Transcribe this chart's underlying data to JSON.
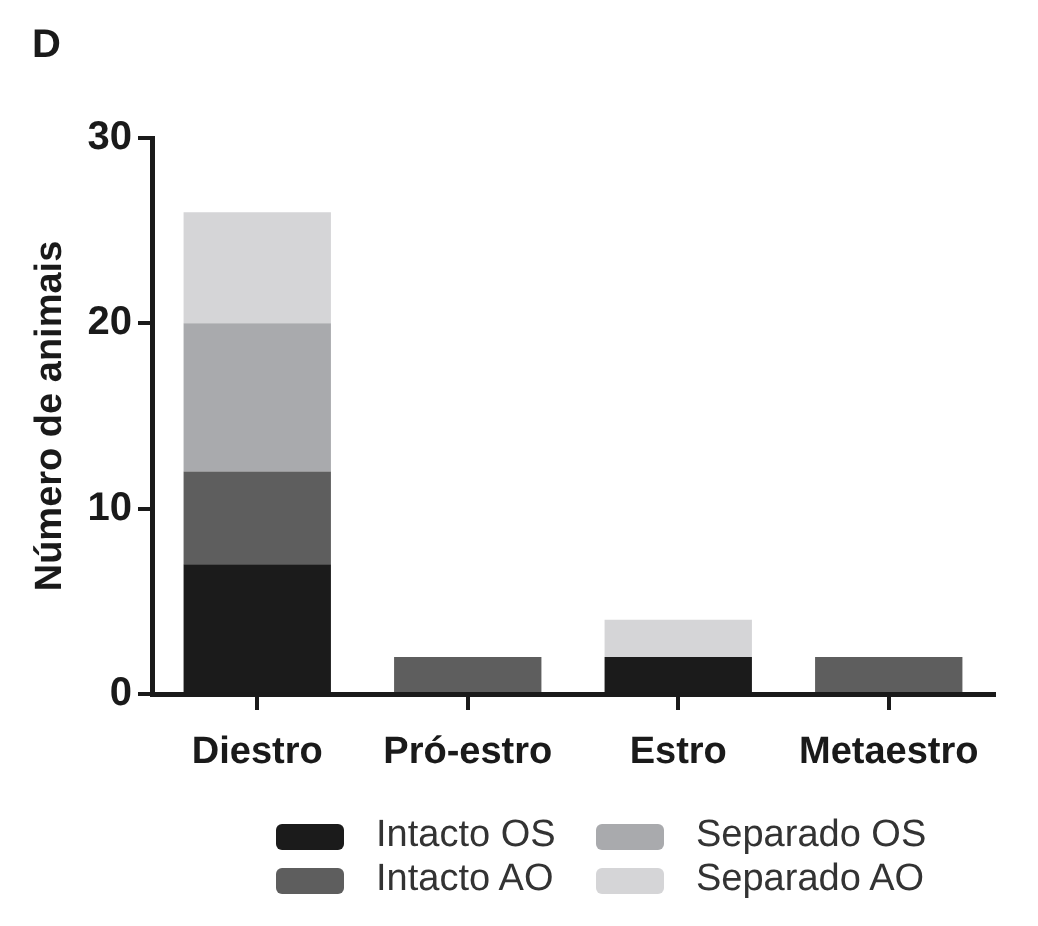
{
  "chart_data": {
    "type": "bar",
    "title": "D",
    "ylabel": "Número de animais",
    "categories": [
      "Diestro",
      "Pró-estro",
      "Estro",
      "Metaestro"
    ],
    "stacked": true,
    "series": [
      {
        "name": "Intacto OS",
        "color": "#1b1b1b",
        "values": [
          7,
          null,
          2,
          null
        ]
      },
      {
        "name": "Intacto AO",
        "color": "#5e5e5e",
        "values": [
          5,
          2,
          null,
          2
        ]
      },
      {
        "name": "Separado OS",
        "color": "#a9aaad",
        "values": [
          8,
          null,
          null,
          null
        ]
      },
      {
        "name": "Separado AO",
        "color": "#d5d5d7",
        "values": [
          6,
          null,
          2,
          null
        ]
      }
    ],
    "ylim": [
      0,
      30
    ],
    "yticks": [
      0,
      10,
      20,
      30
    ],
    "grid": false,
    "legend": "bottom"
  }
}
